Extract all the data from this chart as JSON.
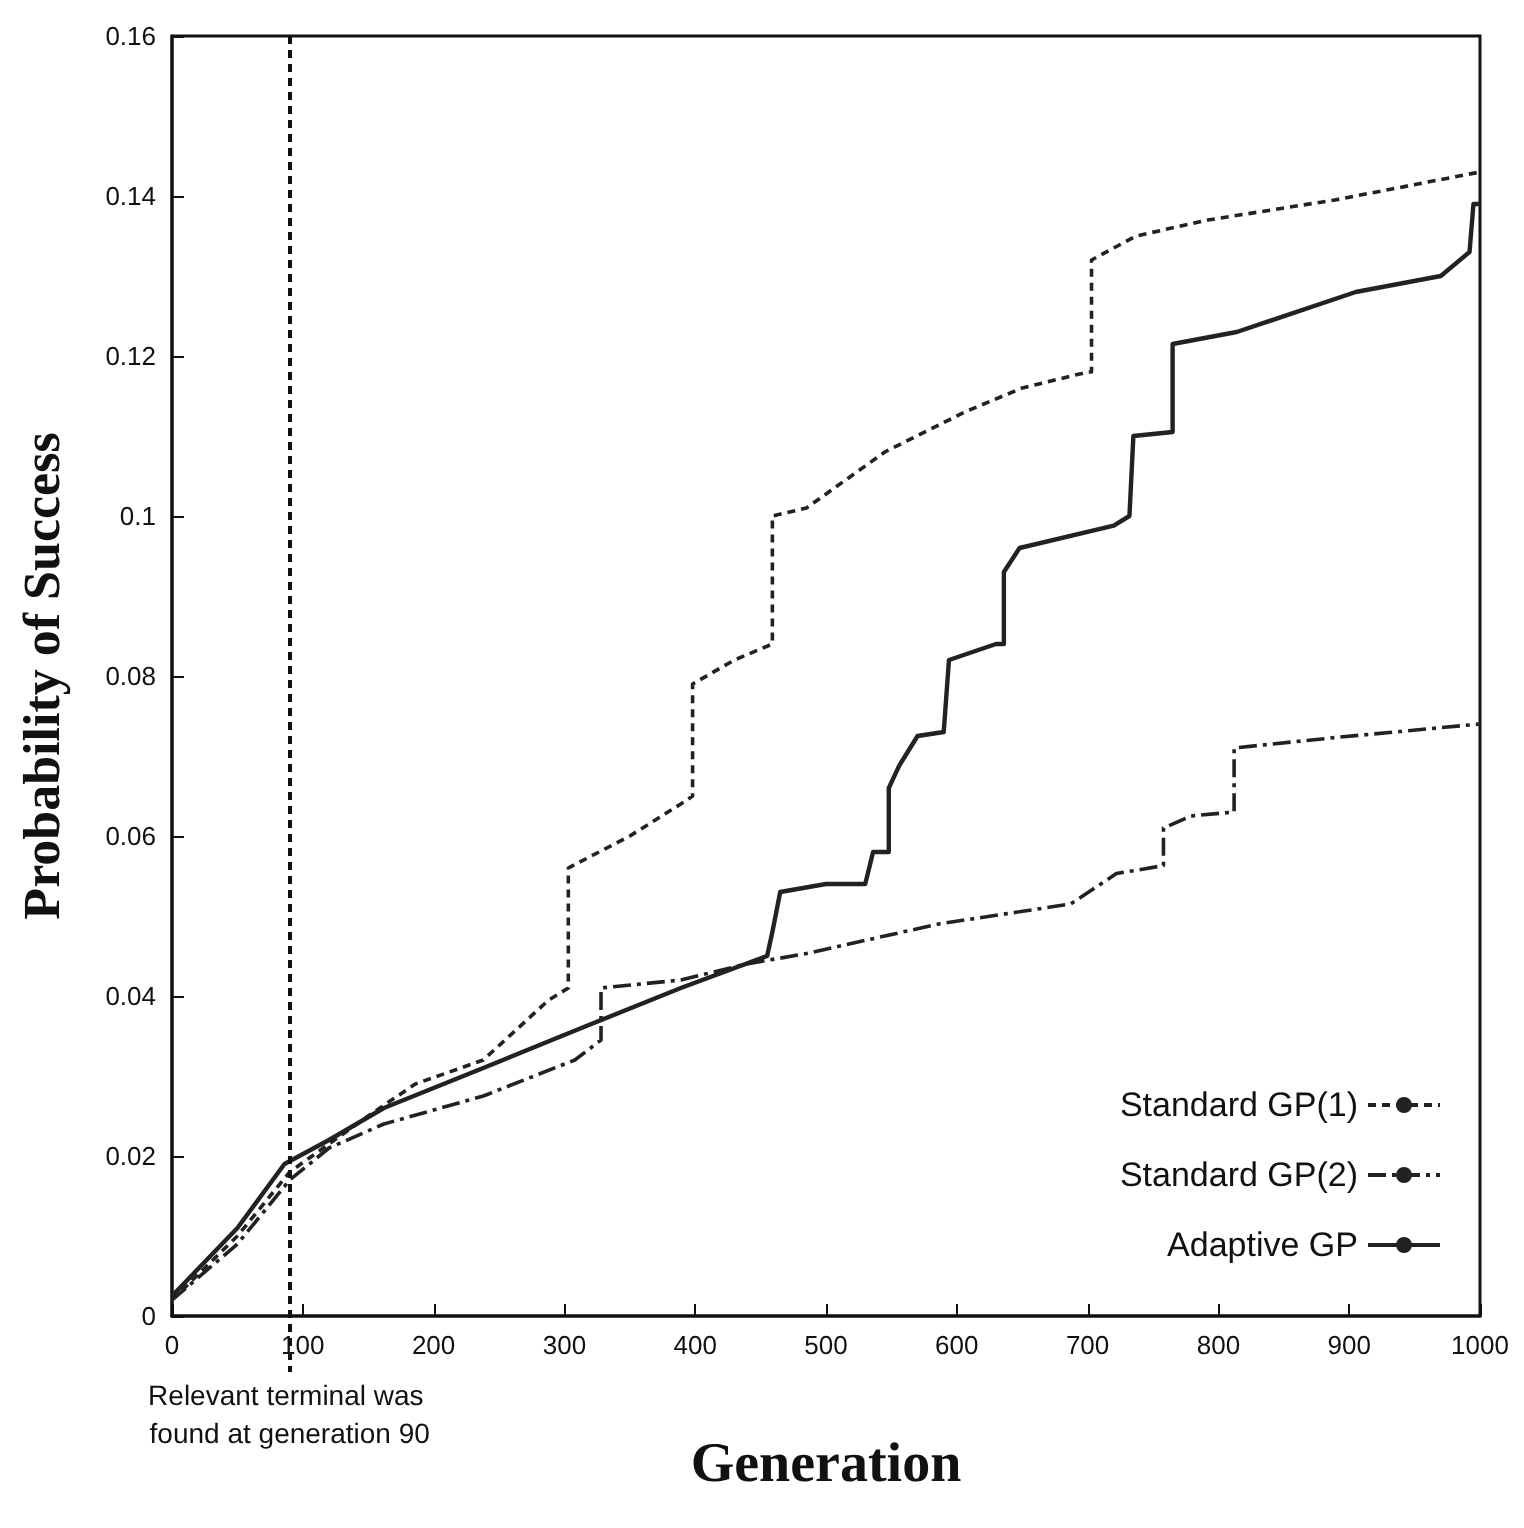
{
  "chart_data": {
    "type": "line",
    "xlabel": "Generation",
    "ylabel": "Probability of Success",
    "xlim": [
      0,
      1000
    ],
    "xticks": [
      0,
      100,
      200,
      300,
      400,
      500,
      600,
      700,
      800,
      900,
      1000
    ],
    "ylim": [
      0,
      0.16
    ],
    "yticks": [
      0,
      0.02,
      0.04,
      0.06,
      0.08,
      0.1,
      0.12,
      0.14,
      0.16
    ],
    "grid": false,
    "legend": "bottom right",
    "marker": "none",
    "ref_lines": [
      {
        "axis": "x",
        "value": 90,
        "label": "Relevant terminal was found at generation 90",
        "line_style": "dotted",
        "color": "#111111"
      }
    ],
    "series": [
      {
        "name": "Standard GP(1)",
        "color": "#222222",
        "line_style": "dotted",
        "x": [
          0,
          50,
          90,
          150,
          186,
          238,
          288,
          303,
          303,
          350,
          389,
          398,
          398,
          430,
          459,
          459,
          485,
          545,
          606,
          650,
          700,
          703,
          703,
          737,
          792,
          889,
          1000
        ],
        "values": [
          0.002,
          0.01,
          0.018,
          0.025,
          0.029,
          0.032,
          0.0395,
          0.041,
          0.056,
          0.06,
          0.064,
          0.065,
          0.079,
          0.082,
          0.084,
          0.1,
          0.101,
          0.108,
          0.113,
          0.116,
          0.118,
          0.118,
          0.132,
          0.135,
          0.137,
          0.1395,
          0.143
        ]
      },
      {
        "name": "Standard GP(2)",
        "color": "#222222",
        "line_style": "dashed",
        "x": [
          0,
          50,
          90,
          120,
          162,
          238,
          308,
          328,
          328,
          389,
          439,
          485,
          586,
          687,
          722,
          758,
          758,
          779,
          812,
          812,
          889,
          1000
        ],
        "values": [
          0.002,
          0.009,
          0.017,
          0.021,
          0.024,
          0.0275,
          0.032,
          0.0345,
          0.041,
          0.042,
          0.044,
          0.0453,
          0.049,
          0.0515,
          0.0553,
          0.0563,
          0.061,
          0.0625,
          0.063,
          0.071,
          0.0723,
          0.074
        ]
      },
      {
        "name": "Adaptive GP",
        "color": "#222222",
        "line_style": "solid",
        "x": [
          0,
          50,
          86,
          120,
          162,
          238,
          313,
          389,
          455,
          459,
          465,
          500,
          530,
          536,
          548,
          548,
          556,
          570,
          590,
          594,
          630,
          636,
          636,
          648,
          720,
          732,
          735,
          765,
          765,
          814,
          905,
          970,
          992,
          995,
          1000
        ],
        "values": [
          0.0025,
          0.011,
          0.019,
          0.022,
          0.026,
          0.031,
          0.036,
          0.041,
          0.045,
          0.048,
          0.053,
          0.054,
          0.054,
          0.058,
          0.058,
          0.066,
          0.0688,
          0.0725,
          0.073,
          0.082,
          0.084,
          0.084,
          0.093,
          0.096,
          0.0988,
          0.1,
          0.11,
          0.1105,
          0.1215,
          0.123,
          0.128,
          0.13,
          0.133,
          0.139,
          0.139
        ]
      }
    ]
  }
}
